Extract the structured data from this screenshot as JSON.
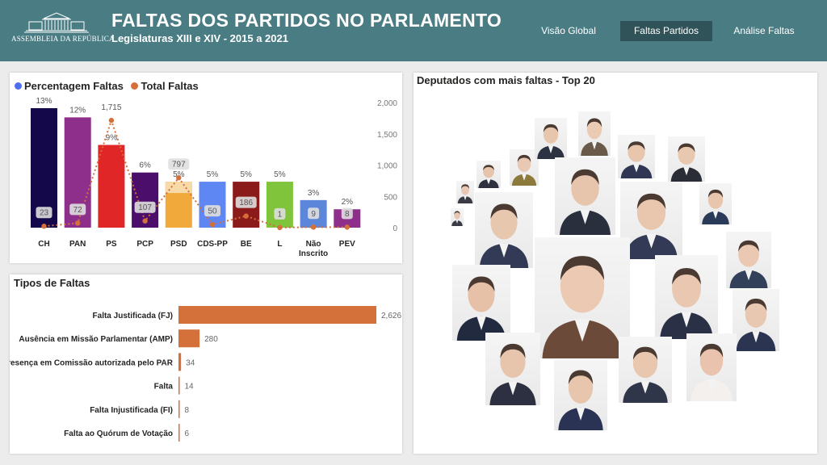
{
  "header": {
    "logo_text": "ASSEMBLEIA DA REPÚBLICA",
    "title": "FALTAS DOS PARTIDOS NO PARLAMENTO",
    "subtitle": "Legislaturas XIII e XIV - 2015 a 2021",
    "background": "#4a7c84",
    "active_tab_color": "#2f5358"
  },
  "nav": [
    {
      "label": "Visão Global",
      "active": false
    },
    {
      "label": "Faltas Partidos",
      "active": true
    },
    {
      "label": "Análise Faltas",
      "active": false
    }
  ],
  "party_chart": {
    "legend": [
      "Percentagem Faltas",
      "Total Faltas"
    ],
    "legend_colors": [
      "#4f6ef0",
      "#d4703a"
    ],
    "chart_data": {
      "type": "bar",
      "categories": [
        "CH",
        "PAN",
        "PS",
        "PCP",
        "PSD",
        "CDS-PP",
        "BE",
        "L",
        "Não Inscrito",
        "PEV"
      ],
      "series": [
        {
          "name": "Percentagem Faltas",
          "values": [
            13,
            12,
            9,
            6,
            5,
            5,
            5,
            5,
            3,
            2
          ],
          "labels": [
            "13%",
            "12%",
            "9%",
            "6%",
            "5%",
            "5%",
            "5%",
            "5%",
            "3%",
            "2%"
          ],
          "axis": "y-left"
        },
        {
          "name": "Total Faltas",
          "values": [
            23,
            72,
            1715,
            107,
            797,
            50,
            186,
            1,
            9,
            8
          ],
          "labels": [
            "23",
            "72",
            "1,715",
            "107",
            "797",
            "50",
            "186",
            "1",
            "9",
            "8"
          ],
          "axis": "y-right"
        }
      ],
      "bar_colors": [
        "#15084a",
        "#8e2f8c",
        "#e02626",
        "#4b0e6b",
        "#f2a93c",
        "#5f87f4",
        "#8b1a1a",
        "#7fc43b",
        "#5b86d9",
        "#8e2f8c"
      ],
      "y_right_ticks": [
        "0",
        "500",
        "1,000",
        "1,500",
        "2,000"
      ],
      "y_right_range": [
        0,
        2000
      ],
      "y_left_range": [
        0,
        14
      ]
    }
  },
  "types_chart": {
    "title": "Tipos de Faltas",
    "chart_data": {
      "type": "bar",
      "orientation": "horizontal",
      "categories": [
        "Falta Justificada (FJ)",
        "Ausência em Missão Parlamentar (AMP)",
        "Presença em Comissão autorizada pelo PAR",
        "Falta",
        "Falta Injustificada (FI)",
        "Falta ao Quórum de Votação"
      ],
      "values": [
        2626,
        280,
        34,
        14,
        8,
        6
      ],
      "labels": [
        "2,626",
        "280",
        "34",
        "14",
        "8",
        "6"
      ],
      "color": "#d4703a",
      "xlim": [
        0,
        2626
      ]
    }
  },
  "deputies": {
    "title": "Deputados com mais faltas - Top 20"
  }
}
